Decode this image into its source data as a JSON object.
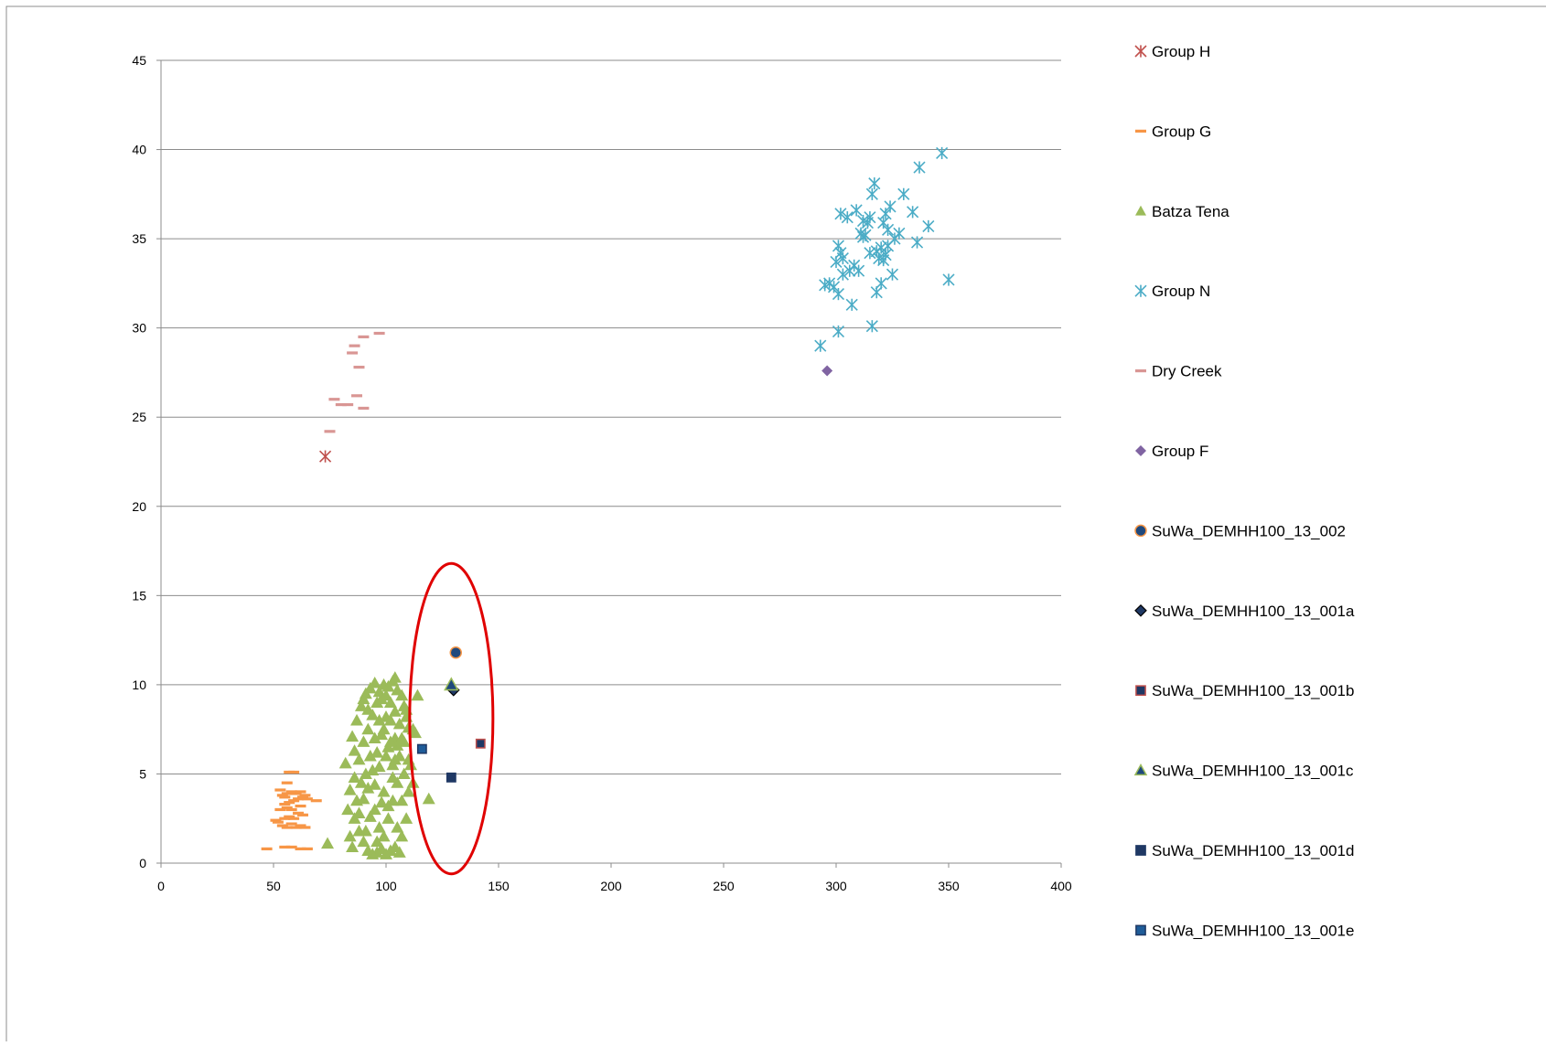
{
  "chart_data": {
    "type": "scatter",
    "title": "",
    "xlabel": "",
    "ylabel": "",
    "xlim": [
      0,
      400
    ],
    "ylim": [
      0,
      45
    ],
    "x_ticks": [
      0,
      50,
      100,
      150,
      200,
      250,
      300,
      350,
      400
    ],
    "y_ticks": [
      0,
      5,
      10,
      15,
      20,
      25,
      30,
      35,
      40,
      45
    ],
    "grid": "horizontal",
    "legend_position": "right",
    "annotations": [
      {
        "type": "ellipse",
        "color": "#e00000",
        "cx": 129,
        "cy": 8.1,
        "rx": 18.5,
        "ry": 8.7
      }
    ],
    "series": [
      {
        "name": "Group H",
        "marker": "star",
        "color": "#c0504d",
        "points": [
          [
            73,
            22.8
          ]
        ]
      },
      {
        "name": "Group G",
        "marker": "dash",
        "color": "#f79646",
        "points": [
          [
            47,
            0.8
          ],
          [
            55,
            0.9
          ],
          [
            58,
            0.9
          ],
          [
            62,
            0.8
          ],
          [
            65,
            0.8
          ],
          [
            52,
            2.3
          ],
          [
            54,
            2.1
          ],
          [
            56,
            2.0
          ],
          [
            58,
            2.2
          ],
          [
            60,
            2.0
          ],
          [
            62,
            2.1
          ],
          [
            64,
            2.0
          ],
          [
            51,
            2.4
          ],
          [
            55,
            2.5
          ],
          [
            57,
            2.6
          ],
          [
            59,
            2.5
          ],
          [
            61,
            2.8
          ],
          [
            63,
            2.7
          ],
          [
            53,
            3.0
          ],
          [
            56,
            3.1
          ],
          [
            58,
            3.0
          ],
          [
            62,
            3.2
          ],
          [
            55,
            3.3
          ],
          [
            57,
            3.4
          ],
          [
            59,
            3.5
          ],
          [
            61,
            3.6
          ],
          [
            63,
            3.7
          ],
          [
            65,
            3.6
          ],
          [
            69,
            3.5
          ],
          [
            54,
            3.8
          ],
          [
            56,
            3.9
          ],
          [
            58,
            4.0
          ],
          [
            60,
            3.9
          ],
          [
            62,
            4.0
          ],
          [
            64,
            3.8
          ],
          [
            56,
            4.5
          ],
          [
            57,
            5.1
          ],
          [
            59,
            5.1
          ],
          [
            53,
            4.1
          ],
          [
            55,
            3.7
          ]
        ]
      },
      {
        "name": "Batza Tena",
        "marker": "triangle",
        "color": "#9bbb59",
        "points": [
          [
            74,
            1.1
          ],
          [
            82,
            5.6
          ],
          [
            84,
            4.1
          ],
          [
            85,
            7.1
          ],
          [
            86,
            6.3
          ],
          [
            87,
            8.0
          ],
          [
            89,
            8.8
          ],
          [
            90,
            9.2
          ],
          [
            91,
            9.5
          ],
          [
            92,
            8.6
          ],
          [
            93,
            9.8
          ],
          [
            95,
            10.1
          ],
          [
            97,
            9.6
          ],
          [
            99,
            10.0
          ],
          [
            101,
            9.9
          ],
          [
            103,
            10.2
          ],
          [
            104,
            10.4
          ],
          [
            105,
            9.7
          ],
          [
            107,
            9.4
          ],
          [
            108,
            8.8
          ],
          [
            109,
            8.2
          ],
          [
            110,
            7.6
          ],
          [
            112,
            7.5
          ],
          [
            114,
            9.4
          ],
          [
            113,
            7.3
          ],
          [
            119,
            3.6
          ],
          [
            111,
            5.5
          ],
          [
            112,
            4.5
          ],
          [
            86,
            2.5
          ],
          [
            88,
            1.8
          ],
          [
            90,
            1.2
          ],
          [
            92,
            0.7
          ],
          [
            94,
            0.5
          ],
          [
            96,
            0.6
          ],
          [
            98,
            0.8
          ],
          [
            100,
            0.5
          ],
          [
            102,
            0.7
          ],
          [
            104,
            0.9
          ],
          [
            106,
            0.6
          ],
          [
            83,
            3.0
          ],
          [
            84,
            1.5
          ],
          [
            85,
            0.9
          ],
          [
            87,
            3.5
          ],
          [
            89,
            4.5
          ],
          [
            91,
            5.0
          ],
          [
            93,
            6.0
          ],
          [
            95,
            7.0
          ],
          [
            97,
            8.0
          ],
          [
            99,
            7.5
          ],
          [
            101,
            6.5
          ],
          [
            103,
            5.5
          ],
          [
            105,
            4.5
          ],
          [
            107,
            3.5
          ],
          [
            109,
            2.5
          ],
          [
            88,
            2.8
          ],
          [
            90,
            3.6
          ],
          [
            92,
            4.2
          ],
          [
            94,
            5.2
          ],
          [
            96,
            6.2
          ],
          [
            98,
            7.2
          ],
          [
            100,
            8.2
          ],
          [
            102,
            9.0
          ],
          [
            104,
            8.5
          ],
          [
            106,
            7.8
          ],
          [
            108,
            6.8
          ],
          [
            110,
            5.8
          ],
          [
            86,
            4.8
          ],
          [
            88,
            5.8
          ],
          [
            90,
            6.8
          ],
          [
            92,
            7.5
          ],
          [
            94,
            8.3
          ],
          [
            96,
            9.0
          ],
          [
            98,
            9.2
          ],
          [
            100,
            9.4
          ],
          [
            102,
            8.0
          ],
          [
            104,
            7.0
          ],
          [
            106,
            6.0
          ],
          [
            108,
            5.0
          ],
          [
            110,
            4.0
          ],
          [
            95,
            3.0
          ],
          [
            97,
            2.0
          ],
          [
            99,
            1.5
          ],
          [
            101,
            2.5
          ],
          [
            103,
            3.5
          ],
          [
            105,
            2.0
          ],
          [
            107,
            1.5
          ],
          [
            91,
            1.8
          ],
          [
            93,
            2.6
          ],
          [
            95,
            4.4
          ],
          [
            97,
            5.4
          ],
          [
            99,
            4.0
          ],
          [
            101,
            3.2
          ],
          [
            103,
            4.8
          ],
          [
            105,
            6.6
          ],
          [
            107,
            7.0
          ],
          [
            109,
            8.6
          ],
          [
            96,
            1.2
          ],
          [
            98,
            3.4
          ],
          [
            100,
            6.0
          ],
          [
            102,
            6.8
          ],
          [
            104,
            5.8
          ]
        ]
      },
      {
        "name": "Group N",
        "marker": "star",
        "color": "#4bacc6",
        "points": [
          [
            293,
            29.0
          ],
          [
            295,
            32.4
          ],
          [
            297,
            32.5
          ],
          [
            299,
            32.3
          ],
          [
            300,
            33.7
          ],
          [
            301,
            31.9
          ],
          [
            301,
            34.6
          ],
          [
            302,
            34.2
          ],
          [
            303,
            33.9
          ],
          [
            302,
            36.4
          ],
          [
            303,
            33.0
          ],
          [
            305,
            36.2
          ],
          [
            306,
            33.2
          ],
          [
            307,
            31.3
          ],
          [
            308,
            33.5
          ],
          [
            309,
            36.6
          ],
          [
            310,
            33.2
          ],
          [
            311,
            35.3
          ],
          [
            312,
            35.1
          ],
          [
            313,
            35.2
          ],
          [
            314,
            35.9
          ],
          [
            315,
            36.2
          ],
          [
            315,
            34.2
          ],
          [
            316,
            37.5
          ],
          [
            317,
            38.1
          ],
          [
            318,
            32.0
          ],
          [
            319,
            33.9
          ],
          [
            320,
            34.5
          ],
          [
            321,
            35.9
          ],
          [
            321,
            33.8
          ],
          [
            322,
            34.1
          ],
          [
            322,
            36.4
          ],
          [
            323,
            35.5
          ],
          [
            324,
            36.8
          ],
          [
            325,
            33.0
          ],
          [
            326,
            35.0
          ],
          [
            328,
            35.3
          ],
          [
            330,
            37.5
          ],
          [
            334,
            36.5
          ],
          [
            336,
            34.8
          ],
          [
            337,
            39.0
          ],
          [
            341,
            35.7
          ],
          [
            347,
            39.8
          ],
          [
            350,
            32.7
          ],
          [
            316,
            30.1
          ],
          [
            301,
            29.8
          ],
          [
            320,
            32.5
          ],
          [
            323,
            34.6
          ],
          [
            318,
            34.3
          ],
          [
            312,
            36.0
          ]
        ]
      },
      {
        "name": "Dry Creek",
        "marker": "dash",
        "color": "#d99694",
        "points": [
          [
            75,
            24.2
          ],
          [
            77,
            26.0
          ],
          [
            80,
            25.7
          ],
          [
            83,
            25.7
          ],
          [
            85,
            28.6
          ],
          [
            86,
            29.0
          ],
          [
            87,
            26.2
          ],
          [
            88,
            27.8
          ],
          [
            90,
            29.5
          ],
          [
            90,
            25.5
          ],
          [
            97,
            29.7
          ]
        ]
      },
      {
        "name": "Group F",
        "marker": "diamond",
        "color": "#8064a2",
        "points": [
          [
            296,
            27.6
          ]
        ]
      },
      {
        "name": "SuWa_DEMHH100_13_002",
        "marker": "circle",
        "color": "#1f497d",
        "stroke": "#f79646",
        "points": [
          [
            131,
            11.8
          ]
        ]
      },
      {
        "name": "SuWa_DEMHH100_13_001a",
        "marker": "diamond",
        "color": "#1f3864",
        "stroke": "#000000",
        "points": [
          [
            130,
            9.7
          ]
        ]
      },
      {
        "name": "SuWa_DEMHH100_13_001b",
        "marker": "square",
        "color": "#1f3864",
        "stroke": "#c0504d",
        "points": [
          [
            142,
            6.7
          ]
        ]
      },
      {
        "name": "SuWa_DEMHH100_13_001c",
        "marker": "triangle",
        "color": "#1f497d",
        "stroke": "#9bbb59",
        "points": [
          [
            129,
            10.0
          ]
        ]
      },
      {
        "name": "SuWa_DEMHH100_13_001d",
        "marker": "square",
        "color": "#1f3864",
        "stroke": "#1f3864",
        "points": [
          [
            129,
            4.8
          ]
        ]
      },
      {
        "name": "SuWa_DEMHH100_13_001e",
        "marker": "square",
        "color": "#1f5c99",
        "stroke": "#1f3864",
        "points": [
          [
            116,
            6.4
          ]
        ]
      }
    ]
  }
}
